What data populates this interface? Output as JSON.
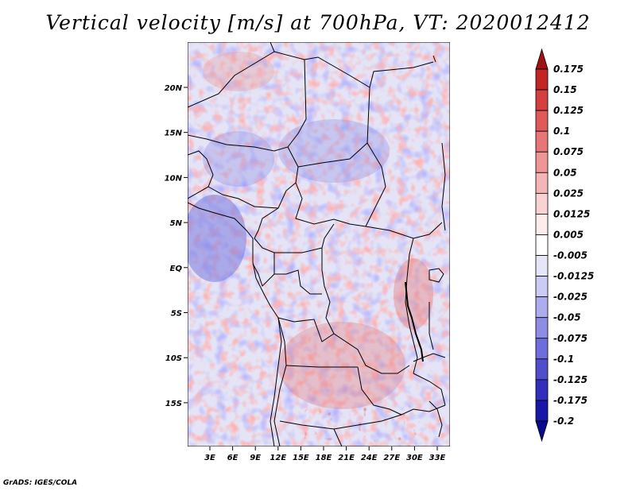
{
  "title": "Vertical velocity [m/s] at 700hPa, VT: 2020012412",
  "credit": "GrADS: IGES/COLA",
  "map": {
    "lat_labels": [
      "20N",
      "15N",
      "10N",
      "5N",
      "EQ",
      "5S",
      "10S",
      "15S"
    ],
    "lon_labels": [
      "3E",
      "6E",
      "9E",
      "12E",
      "15E",
      "18E",
      "21E",
      "24E",
      "27E",
      "30E",
      "33E"
    ],
    "variable": "Vertical velocity",
    "units": "m/s",
    "level": "700hPa",
    "valid_time": "2020012412"
  },
  "colorbar": {
    "labels": [
      "0.175",
      "0.15",
      "0.125",
      "0.1",
      "0.075",
      "0.05",
      "0.025",
      "0.0125",
      "0.005",
      "-0.005",
      "-0.0125",
      "-0.025",
      "-0.05",
      "-0.075",
      "-0.1",
      "-0.125",
      "-0.175",
      "-0.2"
    ],
    "colors": [
      "#a11212",
      "#c32525",
      "#d53f3f",
      "#e05a5a",
      "#e87676",
      "#ef9595",
      "#f5b5b5",
      "#f9d3d3",
      "#fcecec",
      "#ffffff",
      "#e6e6fb",
      "#cbcbf5",
      "#acacef",
      "#8d8de6",
      "#6d6ddc",
      "#4f4fce",
      "#3030bc",
      "#1818a8",
      "#0a0a8c"
    ]
  }
}
